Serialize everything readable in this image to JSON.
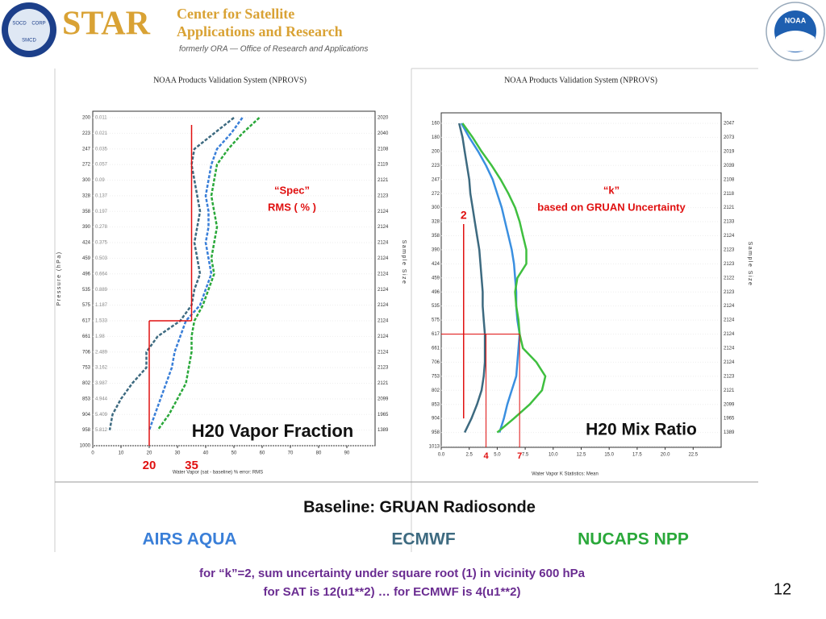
{
  "header": {
    "logo_labels": [
      "SOCD",
      "CORP",
      "SMCD"
    ],
    "star": "STAR",
    "line1": "Center for Satellite",
    "line2": "Applications and Research",
    "subtitle": "formerly ORA — Office of Research and Applications",
    "noaa": "NOAA"
  },
  "chart_data": [
    {
      "type": "line",
      "value_axis": "x",
      "line_style": "dashed",
      "title": "NOAA Products Validation System (NPROVS)",
      "y_label": "Pressure (hPa)",
      "y2_label": "Sample Size",
      "x_label": "Water Vapor (sat - baseline) % error: RMS",
      "categories": [
        200,
        223,
        247,
        272,
        300,
        328,
        358,
        390,
        424,
        459,
        496,
        535,
        575,
        617,
        661,
        706,
        753,
        802,
        853,
        904,
        958,
        1000
      ],
      "level_errors": [
        "0.011",
        "0.021",
        "0.035",
        "0.057",
        "0.09",
        "0.137",
        "0.197",
        "0.278",
        "0.375",
        "0.503",
        "0.664",
        "0.889",
        "1.187",
        "1.533",
        "1.98",
        "2.489",
        "3.162",
        "3.987",
        "4.944",
        "5.409",
        "5.812"
      ],
      "sample_sizes": [
        2020,
        2040,
        2108,
        2119,
        2121,
        2123,
        2124,
        2124,
        2124,
        2124,
        2124,
        2124,
        2124,
        2124,
        2124,
        2124,
        2123,
        2121,
        2099,
        1965,
        1389
      ],
      "xlim": [
        0,
        100
      ],
      "xticks": [
        0,
        10,
        20,
        30,
        40,
        50,
        60,
        70,
        80,
        90
      ],
      "series": [
        {
          "name": "AIRS AQUA",
          "color": "#3a7fd8",
          "values": [
            53,
            49,
            44,
            42,
            41,
            40,
            41,
            41,
            40,
            41,
            42,
            40,
            38,
            33,
            31,
            29,
            28,
            26,
            24,
            22,
            20,
            null
          ]
        },
        {
          "name": "ECMWF",
          "color": "#3d6a80",
          "values": [
            50,
            43,
            36,
            35,
            36,
            37,
            38,
            37,
            36,
            37,
            38,
            36,
            35,
            31,
            23,
            19,
            19,
            14,
            10,
            7,
            6,
            null
          ]
        },
        {
          "name": "NUCAPS NPP",
          "color": "#2aa83a",
          "values": [
            59,
            53,
            48,
            44,
            43,
            42,
            43,
            44,
            43,
            42,
            43,
            41,
            39,
            36,
            35,
            35,
            34,
            33,
            30,
            27,
            23,
            null
          ]
        }
      ],
      "annotations": {
        "note": [
          "“Spec”",
          "RMS ( % )"
        ],
        "name": "H20  Vapor  Fraction"
      },
      "reference": {
        "values": [
          20,
          35
        ],
        "level": 617
      }
    },
    {
      "type": "line",
      "value_axis": "x",
      "line_style": "solid",
      "title": "NOAA Products Validation System (NPROVS)",
      "y2_label": "Sample Size",
      "x_label": "Water Vapor K Statistics: Mean",
      "categories": [
        160,
        180,
        200,
        223,
        247,
        272,
        300,
        328,
        358,
        390,
        424,
        459,
        496,
        535,
        575,
        617,
        661,
        706,
        753,
        802,
        853,
        904,
        958,
        1013
      ],
      "sample_sizes": [
        2047,
        2073,
        2019,
        2039,
        2108,
        2118,
        2121,
        2133,
        2124,
        2123,
        2123,
        2122,
        2123,
        2124,
        2124,
        2124,
        2124,
        2124,
        2123,
        2121,
        2099,
        1965,
        1389
      ],
      "xlim": [
        0,
        25
      ],
      "xticks": [
        {
          "value": 0,
          "label": "0.0"
        },
        {
          "value": 2.5,
          "label": "2.5"
        },
        {
          "value": 5,
          "label": "5.0"
        },
        {
          "value": 7.5,
          "label": "7.5"
        },
        {
          "value": 10,
          "label": "10.0"
        },
        {
          "value": 12.5,
          "label": "12.5"
        },
        {
          "value": 15,
          "label": "15.0"
        },
        {
          "value": 17.5,
          "label": "17.5"
        },
        {
          "value": 20,
          "label": "20.0"
        },
        {
          "value": 22.5,
          "label": "22.5"
        }
      ],
      "series": [
        {
          "name": "AIRS AQUA",
          "color": "#3a8fe0",
          "values": [
            1.8,
            2.5,
            3.3,
            4.0,
            4.6,
            5.0,
            5.4,
            5.7,
            6.0,
            6.3,
            6.5,
            6.6,
            6.7,
            6.7,
            6.8,
            7.0,
            6.9,
            6.8,
            6.7,
            6.3,
            5.9,
            5.6,
            5.2,
            null
          ]
        },
        {
          "name": "ECMWF",
          "color": "#3d6a80",
          "values": [
            1.6,
            1.9,
            2.1,
            2.3,
            2.5,
            2.6,
            2.8,
            3.0,
            3.2,
            3.4,
            3.5,
            3.6,
            3.7,
            3.7,
            3.8,
            3.9,
            3.9,
            3.9,
            3.8,
            3.6,
            3.2,
            2.7,
            2.1,
            null
          ]
        },
        {
          "name": "NUCAPS NPP",
          "color": "#3fbf3f",
          "values": [
            1.9,
            2.8,
            3.6,
            4.5,
            5.3,
            6.0,
            6.6,
            7.0,
            7.3,
            7.6,
            7.6,
            6.8,
            6.6,
            6.7,
            6.9,
            7.0,
            7.3,
            8.5,
            9.3,
            9.0,
            7.9,
            6.5,
            5.0,
            null
          ]
        }
      ],
      "annotations": {
        "note": [
          "“k”",
          "based on GRUAN Uncertainty"
        ],
        "name": "H20 Mix Ratio"
      },
      "reference": {
        "values": [
          4,
          7
        ],
        "level": 617,
        "k": 2
      }
    }
  ],
  "baseline": "Baseline: GRUAN Radiosonde",
  "note": [
    "for “k”=2, sum uncertainty under square root  (1) in vicinity 600 hPa",
    "for SAT is 12(u1**2) … for ECMWF is 4(u1**2)"
  ],
  "page_number": "12"
}
